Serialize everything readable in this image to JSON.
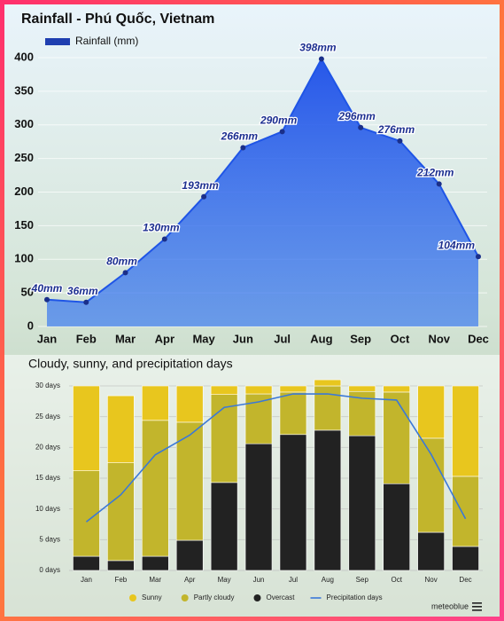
{
  "chart_data": [
    {
      "type": "area",
      "title": "Rainfall - Phú Quốc, Vietnam",
      "categories": [
        "Jan",
        "Feb",
        "Mar",
        "Apr",
        "May",
        "Jun",
        "Jul",
        "Aug",
        "Sep",
        "Oct",
        "Nov",
        "Dec"
      ],
      "series": [
        {
          "name": "Rainfall (mm)",
          "color": "#1f55e6",
          "values": [
            40,
            36,
            80,
            130,
            193,
            266,
            290,
            398,
            296,
            276,
            212,
            104
          ],
          "value_labels": [
            "40mm",
            "36mm",
            "80mm",
            "130mm",
            "193mm",
            "266mm",
            "290mm",
            "398mm",
            "296mm",
            "276mm",
            "212mm",
            "104mm"
          ]
        }
      ],
      "ylim": [
        0,
        400
      ],
      "yticks": [
        0,
        50,
        100,
        150,
        200,
        250,
        300,
        350,
        400
      ],
      "grid": true
    },
    {
      "type": "stacked-bar",
      "title": "Cloudy, sunny, and precipitation days",
      "categories": [
        "Jan",
        "Feb",
        "Mar",
        "Apr",
        "May",
        "Jun",
        "Jul",
        "Aug",
        "Sep",
        "Oct",
        "Nov",
        "Dec"
      ],
      "series": [
        {
          "name": "Sunny",
          "color": "#e8c61e",
          "values": [
            13.8,
            10.9,
            5.6,
            5.9,
            1.4,
            1.3,
            1.0,
            1.0,
            0.9,
            1.0,
            8.5,
            14.7
          ]
        },
        {
          "name": "Partly cloudy",
          "color": "#c2b52c",
          "values": [
            13.9,
            15.9,
            22.1,
            19.2,
            14.3,
            8.1,
            6.9,
            7.2,
            7.2,
            14.9,
            15.3,
            11.4
          ]
        },
        {
          "name": "Overcast",
          "color": "#222222",
          "values": [
            2.3,
            1.6,
            2.3,
            4.9,
            14.3,
            20.6,
            22.1,
            22.8,
            21.9,
            14.1,
            6.2,
            3.9
          ]
        },
        {
          "name": "Precipitation days",
          "color": "#3a78d8",
          "type": "line",
          "values": [
            7.9,
            12.3,
            18.8,
            22,
            26.5,
            27.4,
            28.7,
            28.7,
            28,
            27.7,
            18.9,
            8.4
          ]
        }
      ],
      "ylim": [
        0,
        30
      ],
      "yticks": [
        {
          "value": 0,
          "label": "0 days"
        },
        {
          "value": 5,
          "label": "5 days"
        },
        {
          "value": 10,
          "label": "10 days"
        },
        {
          "value": 15,
          "label": "15 days"
        },
        {
          "value": 20,
          "label": "20 days"
        },
        {
          "value": 25,
          "label": "25 days"
        },
        {
          "value": 30,
          "label": "30 days"
        }
      ],
      "grid": true,
      "credit": "meteoblue"
    }
  ]
}
